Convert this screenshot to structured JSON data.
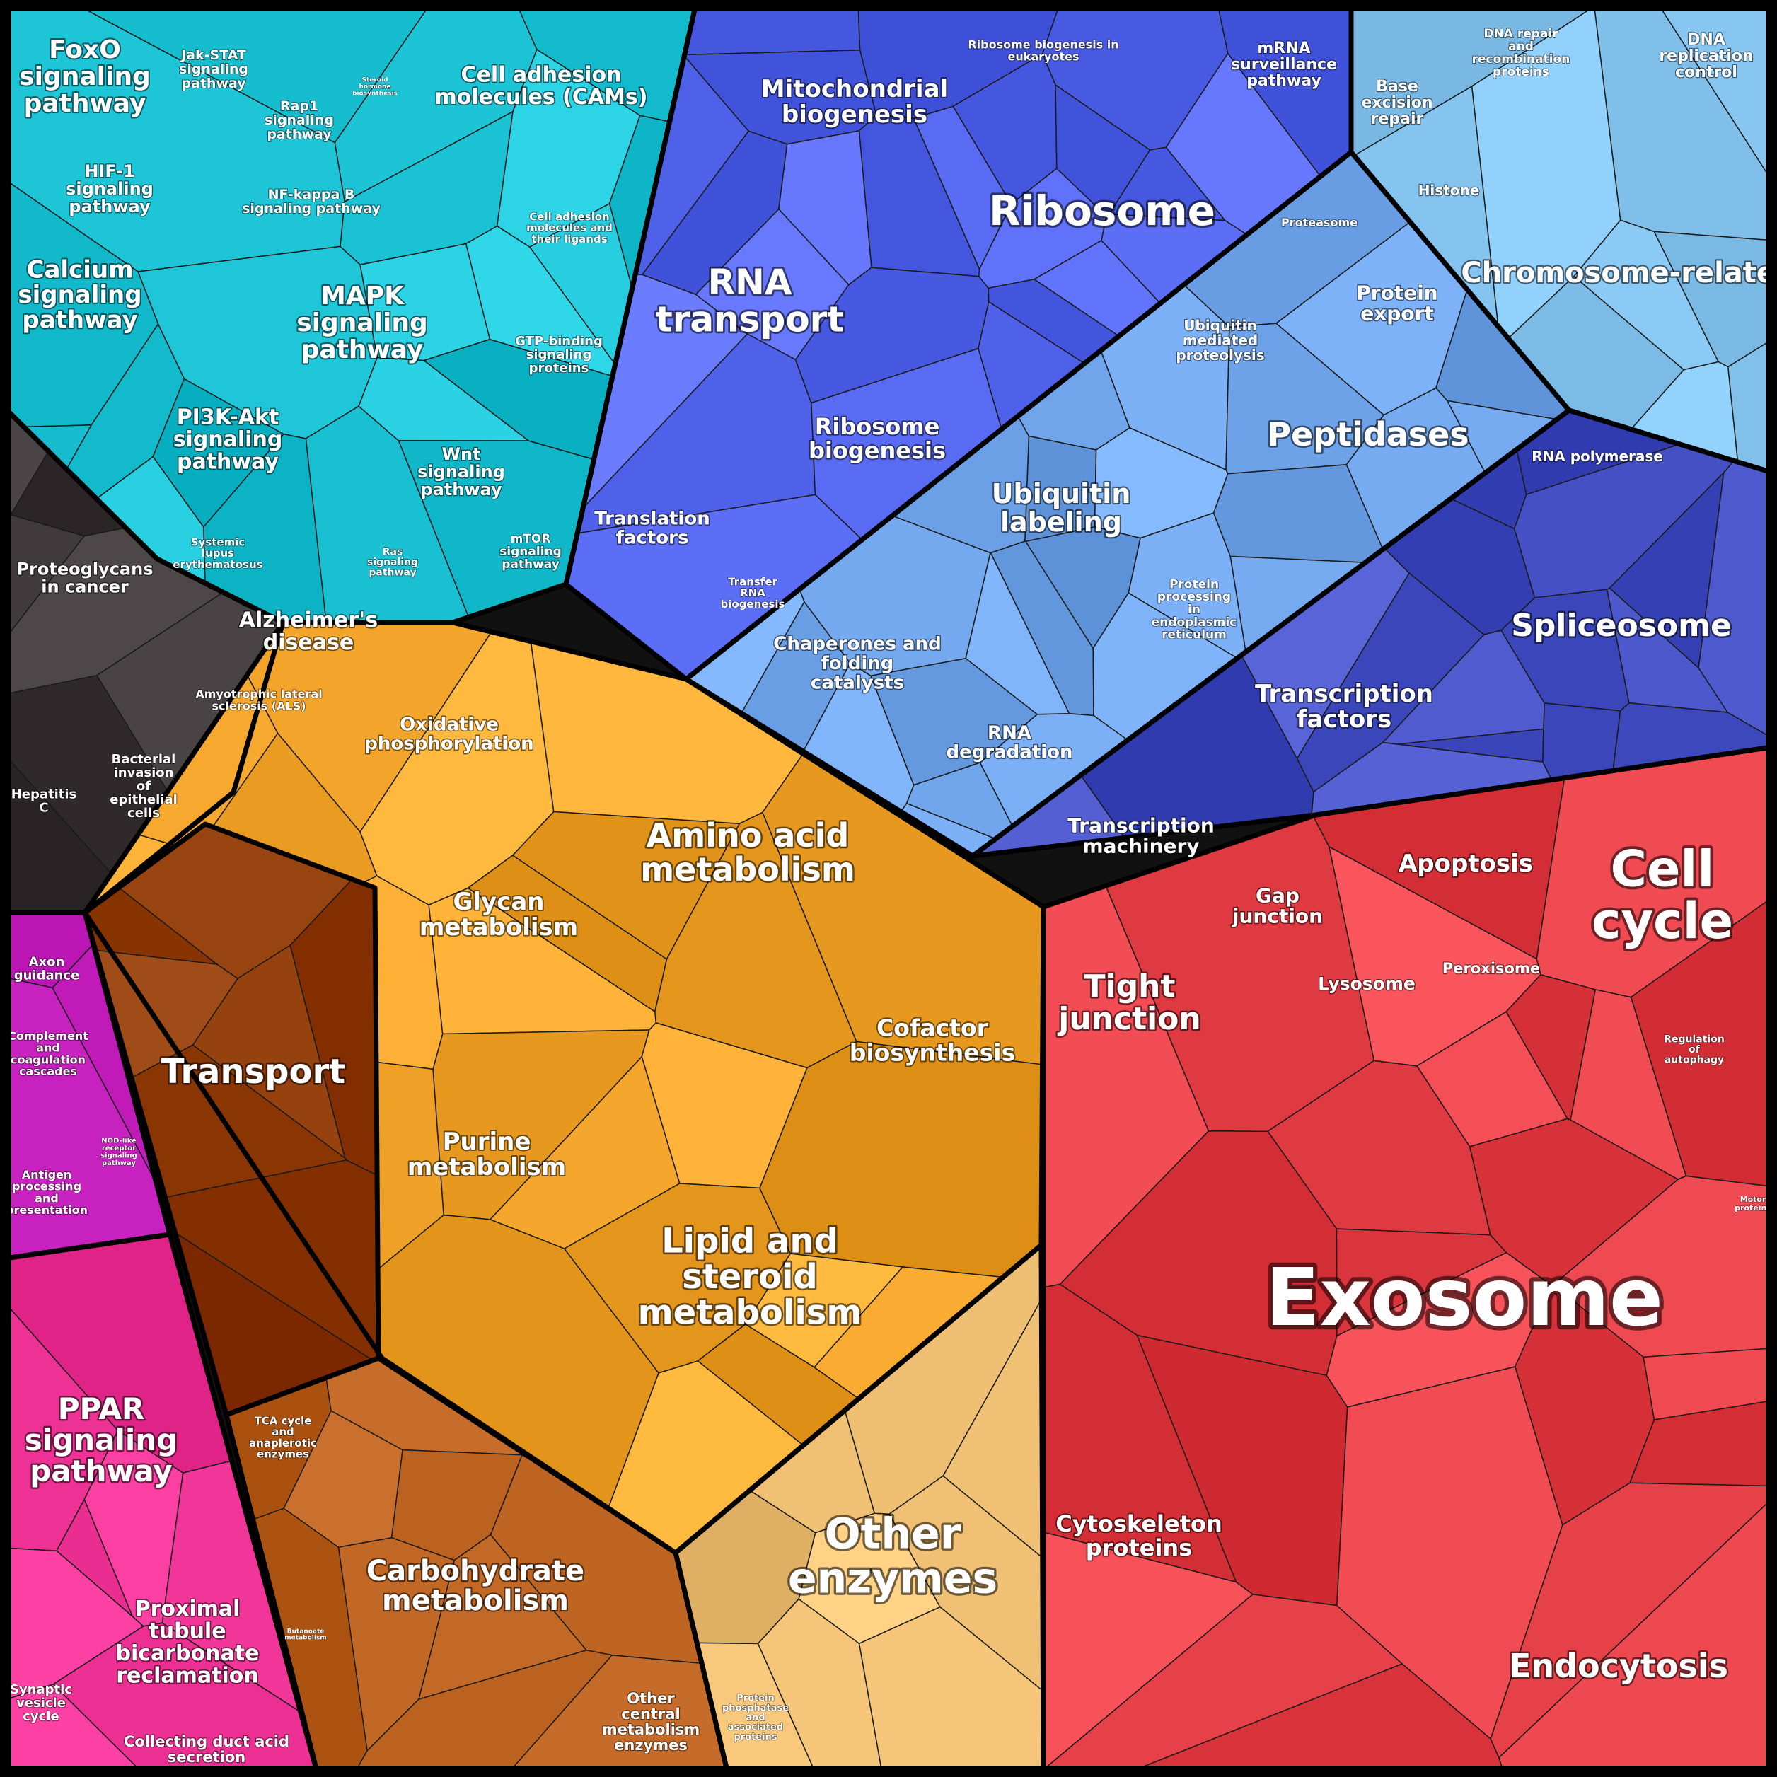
{
  "diagram": {
    "type": "voronoi-treemap",
    "groups": [
      {
        "id": "signaling",
        "color": "#1cc3d4",
        "labels": [
          "FoxO signaling pathway",
          "Jak-STAT signaling pathway",
          "Steroid hormone biosynthesis",
          "Cell adhesion molecules (CAMs)",
          "Rap1 signaling pathway",
          "HIF-1 signaling pathway",
          "NF-kappa B signaling pathway",
          "Cell adhesion molecules and their ligands",
          "Calcium signaling pathway",
          "MAPK signaling pathway",
          "GTP-binding signaling proteins",
          "PI3K-Akt signaling pathway",
          "Wnt signaling pathway",
          "mTOR signaling pathway",
          "Ras signaling pathway"
        ]
      },
      {
        "id": "rna",
        "color": "#5566ee",
        "labels": [
          "Mitochondrial biogenesis",
          "Ribosome biogenesis in eukaryotes",
          "mRNA surveillance pathway",
          "Ribosome",
          "RNA transport",
          "Ribosome biogenesis",
          "Translation factors",
          "Transfer RNA biogenesis"
        ]
      },
      {
        "id": "repair",
        "color": "#8ac8f4",
        "labels": [
          "Base excision repair",
          "DNA repair and recombination proteins",
          "DNA replication control",
          "Histone",
          "Chromosome-related",
          "Proteasome",
          "Protein export"
        ]
      },
      {
        "id": "protein",
        "color": "#6fa4ea",
        "labels": [
          "Ubiquitin mediated proteolysis",
          "Peptidases",
          "Ubiquitin labeling",
          "Protein processing in endoplasmic reticulum",
          "Chaperones and folding catalysts",
          "RNA degradation"
        ]
      },
      {
        "id": "transcription",
        "color": "#4450c4",
        "labels": [
          "RNA polymerase",
          "Spliceosome",
          "Transcription factors",
          "Transcription machinery"
        ]
      },
      {
        "id": "disease",
        "color": "#3a3436",
        "labels": [
          "Proteoglycans in cancer",
          "Systemic lupus erythematosus",
          "Alzheimer's disease",
          "Amyotrophic lateral sclerosis (ALS)",
          "Hepatitis C",
          "Bacterial invasion of epithelial cells"
        ]
      },
      {
        "id": "immune",
        "color": "#c01ab8",
        "labels": [
          "Axon guidance",
          "Complement and coagulation cascades",
          "NOD-like receptor signaling pathway",
          "Antigen processing and presentation"
        ]
      },
      {
        "id": "kidney",
        "color": "#f03498",
        "labels": [
          "PPAR signaling pathway",
          "Proximal tubule bicarbonate reclamation",
          "Synaptic vesicle cycle",
          "Collecting duct acid secretion"
        ]
      },
      {
        "id": "metabolism",
        "color": "#f2a52a",
        "labels": [
          "Oxidative phosphorylation",
          "Amino acid metabolism",
          "Glycan metabolism",
          "Cofactor biosynthesis",
          "Purine metabolism",
          "Lipid and steroid metabolism"
        ]
      },
      {
        "id": "transport",
        "color": "#903c08",
        "labels": [
          "Transport"
        ]
      },
      {
        "id": "carbohydrate",
        "color": "#b85e1c",
        "labels": [
          "TCA cycle and anaplerotic enzymes",
          "Butanoate metabolism",
          "Carbohydrate metabolism",
          "Other central metabolism enzymes"
        ]
      },
      {
        "id": "enzymes",
        "color": "#ecbc70",
        "labels": [
          "Other enzymes",
          "Protein phosphatase and associated proteins"
        ]
      },
      {
        "id": "cellular",
        "color": "#e43e46",
        "labels": [
          "Gap junction",
          "Apoptosis",
          "Cell cycle",
          "Tight junction",
          "Lysosome",
          "Peroxisome",
          "Regulation of autophagy",
          "Motor proteins",
          "Exosome",
          "Cytoskeleton proteins",
          "Endocytosis"
        ]
      }
    ]
  }
}
